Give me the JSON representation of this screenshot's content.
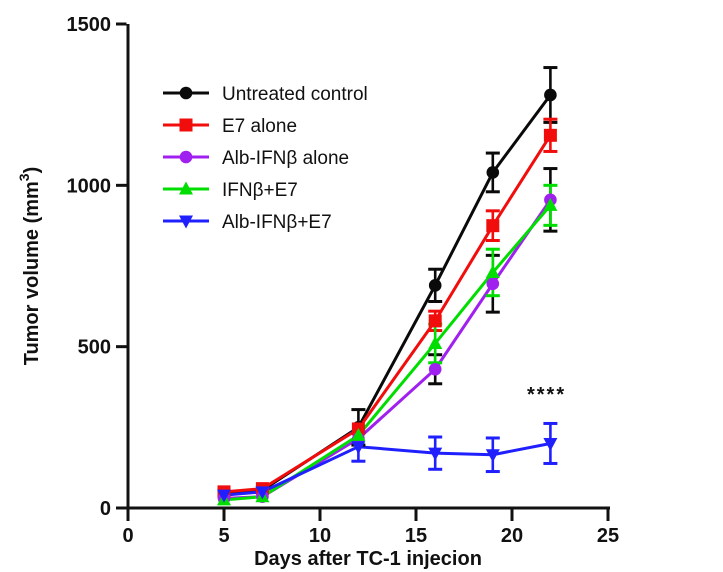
{
  "figure": {
    "background": "#ffffff",
    "text_color": "#111111",
    "axis_color": "#111111"
  },
  "chart_data": {
    "type": "line",
    "title": "",
    "xlabel": "Days after TC-1 injecion",
    "ylabel": "Tumor volume (mm3)",
    "ylabel_parts": {
      "main": "Tumor volume (mm",
      "sup": "3",
      "close": ")"
    },
    "xlim": [
      0,
      25
    ],
    "ylim": [
      0,
      1500
    ],
    "xticks": [
      0,
      5,
      10,
      15,
      20,
      25
    ],
    "yticks": [
      0,
      500,
      1000,
      1500
    ],
    "grid": false,
    "legend_position": "inside-top-left",
    "annotation": {
      "text": "****",
      "x": 21.8,
      "y": 356
    },
    "x": [
      5,
      7,
      12,
      16,
      19,
      22
    ],
    "series": [
      {
        "name": "Untreated control",
        "slug": "untreated-control",
        "color": "#0a0a0a",
        "marker": "circle",
        "values": [
          45,
          55,
          250,
          690,
          1040,
          1280
        ],
        "errors": [
          0,
          0,
          55,
          50,
          60,
          85
        ]
      },
      {
        "name": "E7 alone",
        "slug": "e7-alone",
        "color": "#f20d0d",
        "marker": "square",
        "values": [
          50,
          60,
          245,
          580,
          875,
          1155
        ],
        "errors": [
          0,
          0,
          0,
          30,
          46,
          50
        ]
      },
      {
        "name": "Alb-IFNβ alone",
        "slug": "alb-ifnb-alone",
        "color": "#a020f0",
        "marker": "circle",
        "error_color": "#0a0a0a",
        "values": [
          30,
          35,
          215,
          430,
          695,
          955
        ],
        "errors": [
          0,
          0,
          0,
          45,
          88,
          97
        ]
      },
      {
        "name": "IFNβ+E7",
        "slug": "ifnb-e7",
        "color": "#00dd00",
        "marker": "triangle-up",
        "values": [
          25,
          35,
          225,
          510,
          730,
          938
        ],
        "errors": [
          0,
          0,
          0,
          60,
          72,
          62
        ]
      },
      {
        "name": "Alb-IFNβ+E7",
        "slug": "alb-ifnb-e7",
        "color": "#2020ff",
        "marker": "triangle-down",
        "values": [
          40,
          50,
          190,
          170,
          165,
          200
        ],
        "errors": [
          0,
          0,
          45,
          50,
          52,
          62
        ]
      }
    ]
  }
}
